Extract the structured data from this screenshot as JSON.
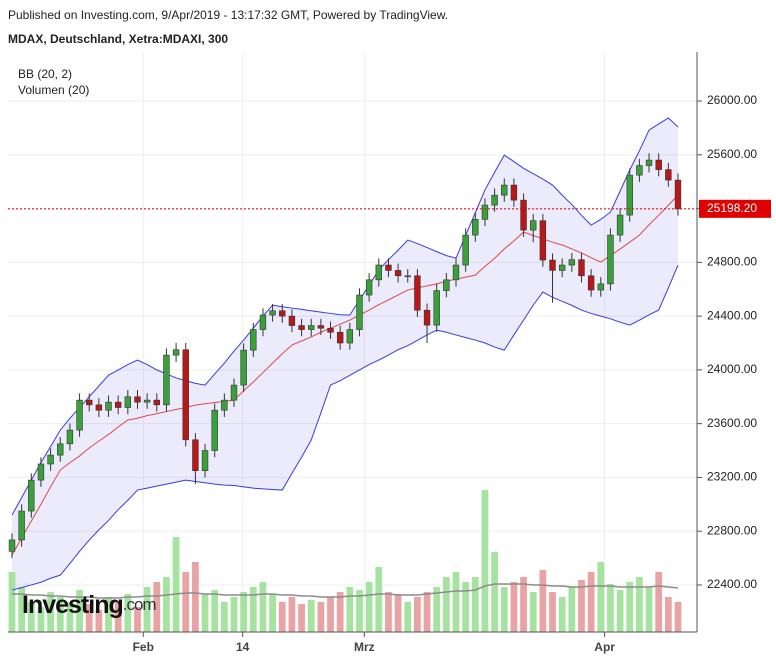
{
  "header": {
    "published": "Published on Investing.com, 9/Apr/2019 - 13:17:32 GMT, Powered by TradingView.",
    "symbol": "MDAX, Deutschland, Xetra:MDAXI, 300"
  },
  "logo": {
    "name": "Investing",
    "suffix": ".com"
  },
  "chart_data": {
    "type": "candlestick",
    "indicators": [
      "BB (20, 2)",
      "Volumen (20)"
    ],
    "open": [
      22650,
      22735,
      22950,
      23180,
      23300,
      23366,
      23450,
      23552,
      23775,
      23740,
      23700,
      23760,
      23720,
      23800,
      23760,
      23775,
      23740,
      24110,
      24150,
      23480,
      23250,
      23400,
      23700,
      23775,
      23887,
      24147,
      24300,
      24408,
      24440,
      24400,
      24330,
      24300,
      24330,
      24310,
      24280,
      24200,
      24300,
      24557,
      24670,
      24780,
      24740,
      24700,
      24700,
      24444,
      24333,
      24590,
      24670,
      24780,
      25003,
      25120,
      25226,
      25300,
      25375,
      25263,
      25040,
      25110,
      24817,
      24740,
      24780,
      24820,
      24700,
      24594,
      24640,
      25003,
      25152,
      25449,
      25520,
      25561,
      25490,
      25412
    ],
    "high": [
      22785,
      23000,
      23230,
      23350,
      23416,
      23500,
      23602,
      23825,
      23825,
      23790,
      23810,
      23810,
      23850,
      23850,
      23825,
      23825,
      24160,
      24200,
      24200,
      23530,
      23450,
      23750,
      23825,
      23937,
      24197,
      24350,
      24458,
      24490,
      24490,
      24450,
      24380,
      24380,
      24380,
      24360,
      24330,
      24350,
      24607,
      24720,
      24830,
      24830,
      24790,
      24750,
      24750,
      24494,
      24640,
      24720,
      24830,
      25053,
      25170,
      25276,
      25350,
      25425,
      25425,
      25313,
      25160,
      25160,
      24867,
      24830,
      24870,
      24870,
      24750,
      24690,
      25053,
      25202,
      25499,
      25570,
      25611,
      25611,
      25540,
      25462
    ],
    "low": [
      22600,
      22685,
      22900,
      23130,
      23250,
      23316,
      23400,
      23502,
      23690,
      23650,
      23650,
      23670,
      23670,
      23710,
      23710,
      23690,
      23690,
      24060,
      23430,
      23150,
      23200,
      23350,
      23650,
      23725,
      23837,
      24097,
      24250,
      24358,
      24350,
      24280,
      24250,
      24250,
      24260,
      24230,
      24150,
      24150,
      24250,
      24507,
      24620,
      24690,
      24650,
      24650,
      24394,
      24200,
      24283,
      24540,
      24620,
      24730,
      24953,
      25070,
      25176,
      25250,
      25213,
      24990,
      24950,
      24767,
      24500,
      24690,
      24730,
      24650,
      24544,
      24544,
      24590,
      24953,
      25102,
      25399,
      25470,
      25440,
      25362,
      25148
    ],
    "close": [
      22735,
      22950,
      23180,
      23300,
      23366,
      23450,
      23552,
      23775,
      23740,
      23700,
      23760,
      23720,
      23800,
      23760,
      23775,
      23740,
      24110,
      24150,
      23480,
      23250,
      23400,
      23700,
      23775,
      23887,
      24147,
      24300,
      24408,
      24440,
      24400,
      24330,
      24300,
      24330,
      24310,
      24280,
      24200,
      24300,
      24557,
      24670,
      24780,
      24740,
      24700,
      24700,
      24444,
      24333,
      24590,
      24670,
      24780,
      25003,
      25120,
      25226,
      25300,
      25375,
      25263,
      25040,
      25110,
      24817,
      24740,
      24780,
      24820,
      24700,
      24594,
      24640,
      25003,
      25152,
      25449,
      25520,
      25561,
      25490,
      25412,
      25198.2
    ],
    "bb_upper": [
      22920,
      23050,
      23180,
      23310,
      23430,
      23552,
      23640,
      23720,
      23800,
      23880,
      23961,
      24000,
      24040,
      24073,
      24040,
      24000,
      23970,
      23940,
      23920,
      23900,
      23887,
      23970,
      24050,
      24140,
      24222,
      24310,
      24400,
      24482,
      24470,
      24460,
      24450,
      24440,
      24430,
      24420,
      24410,
      24408,
      24520,
      24630,
      24743,
      24820,
      24890,
      24966,
      24940,
      24910,
      24880,
      24850,
      24832,
      25000,
      25170,
      25338,
      25470,
      25598,
      25550,
      25500,
      25460,
      25420,
      25375,
      25300,
      25230,
      25150,
      25077,
      25120,
      25174,
      25330,
      25487,
      25630,
      25784,
      25830,
      25874,
      25807
    ],
    "bb_middle": [
      22622,
      22750,
      22875,
      23000,
      23130,
      23255,
      23310,
      23360,
      23420,
      23470,
      23520,
      23575,
      23627,
      23640,
      23660,
      23675,
      23690,
      23705,
      23720,
      23738,
      23748,
      23757,
      23766,
      23775,
      23845,
      23910,
      23980,
      24050,
      24120,
      24185,
      24215,
      24245,
      24280,
      24310,
      24340,
      24371,
      24408,
      24445,
      24485,
      24520,
      24558,
      24594,
      24610,
      24625,
      24640,
      24660,
      24675,
      24690,
      24705,
      24770,
      24830,
      24900,
      24960,
      25025,
      25000,
      24975,
      24950,
      24929,
      24900,
      24870,
      24835,
      24802,
      24850,
      24900,
      24950,
      25003,
      25080,
      25150,
      25225,
      25301
    ],
    "bb_lower": [
      22362,
      22380,
      22400,
      22420,
      22450,
      22473,
      22560,
      22650,
      22734,
      22810,
      22880,
      22960,
      23030,
      23106,
      23120,
      23135,
      23150,
      23165,
      23180,
      23170,
      23160,
      23150,
      23143,
      23140,
      23130,
      23120,
      23115,
      23110,
      23106,
      23230,
      23350,
      23478,
      23680,
      23887,
      23920,
      23960,
      24000,
      24040,
      24073,
      24110,
      24150,
      24180,
      24220,
      24260,
      24296,
      24280,
      24260,
      24240,
      24222,
      24200,
      24170,
      24147,
      24260,
      24370,
      24482,
      24579,
      24540,
      24510,
      24480,
      24445,
      24420,
      24400,
      24380,
      24355,
      24333,
      24370,
      24410,
      24445,
      24610,
      24780
    ],
    "volume": [
      60,
      45,
      30,
      25,
      40,
      35,
      30,
      42,
      28,
      22,
      35,
      30,
      38,
      25,
      45,
      50,
      55,
      95,
      60,
      70,
      38,
      42,
      30,
      35,
      40,
      45,
      50,
      38,
      30,
      35,
      28,
      32,
      30,
      35,
      40,
      45,
      42,
      50,
      65,
      40,
      38,
      30,
      35,
      40,
      45,
      55,
      60,
      50,
      55,
      142,
      80,
      45,
      50,
      55,
      40,
      62,
      40,
      35,
      45,
      52,
      60,
      70,
      48,
      42,
      50,
      55,
      45,
      60,
      35,
      30
    ],
    "volume_ma": [
      38,
      38,
      37,
      37,
      36,
      36,
      35,
      35,
      35,
      34,
      34,
      34,
      35,
      35,
      36,
      36,
      37,
      38,
      39,
      39,
      38,
      38,
      37,
      37,
      37,
      37,
      38,
      38,
      37,
      37,
      36,
      36,
      35,
      35,
      35,
      36,
      36,
      37,
      38,
      38,
      37,
      37,
      37,
      38,
      39,
      40,
      41,
      41,
      42,
      46,
      48,
      48,
      48,
      48,
      47,
      47,
      46,
      46,
      45,
      45,
      46,
      46,
      46,
      45,
      45,
      45,
      45,
      46,
      45,
      44
    ],
    "xticks": [
      {
        "value": 13.6,
        "label": "Feb"
      },
      {
        "value": 23.9,
        "label": "14"
      },
      {
        "value": 36.5,
        "label": "Mrz"
      },
      {
        "value": 61.4,
        "label": "Apr"
      }
    ],
    "ylim": [
      22050,
      26365
    ],
    "yticks": [
      {
        "value": 22400,
        "label": "22400.00"
      },
      {
        "value": 22800,
        "label": "22800.00"
      },
      {
        "value": 23200,
        "label": "23200.00"
      },
      {
        "value": 23600,
        "label": "23600.00"
      },
      {
        "value": 24000,
        "label": "24000.00"
      },
      {
        "value": 24400,
        "label": "24400.00"
      },
      {
        "value": 24800,
        "label": "24800.00"
      },
      {
        "value": 25200,
        "label": "25200.00"
      },
      {
        "value": 25600,
        "label": "25600.00"
      },
      {
        "value": 26000,
        "label": "26000.00"
      }
    ],
    "last_price": {
      "value": 25198.2,
      "label": "25198.20"
    },
    "grid": true,
    "colors": {
      "up": "#3aa13a",
      "down": "#b81818",
      "band": "#3a3ae0",
      "middle": "#e04848",
      "volume_up": "#a6e3a0",
      "volume_down": "#e8a4a4",
      "volume_ma": "#8c8c8c",
      "last": "#e00000"
    }
  }
}
